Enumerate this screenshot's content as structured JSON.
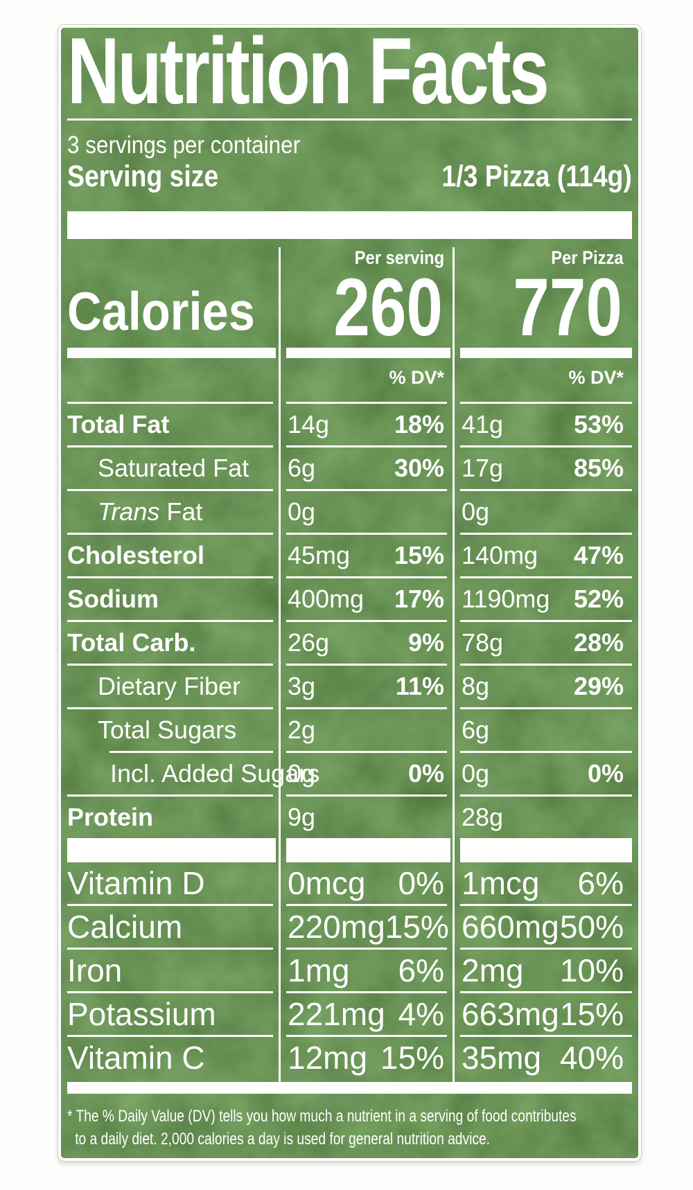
{
  "label": {
    "green_color": "#31511d",
    "text_color": "#ffffff",
    "title": "Nutrition Facts",
    "servings_per_container": "3 servings per container",
    "serving_size": {
      "label": "Serving size",
      "value": "1/3 Pizza (114g)"
    },
    "calories": {
      "label": "Calories",
      "columns": [
        {
          "header": "Per serving",
          "value": "260"
        },
        {
          "header": "Per Pizza",
          "value": "770"
        }
      ]
    },
    "dv_header": "% DV*",
    "nutrients": [
      {
        "name": "Total Fat",
        "style": "bold",
        "indent": 0,
        "per_serving": {
          "amount": "14g",
          "dv": "18%"
        },
        "per_pizza": {
          "amount": "41g",
          "dv": "53%"
        }
      },
      {
        "name": "Saturated Fat",
        "style": "regular",
        "indent": 1,
        "per_serving": {
          "amount": "6g",
          "dv": "30%"
        },
        "per_pizza": {
          "amount": "17g",
          "dv": "85%"
        }
      },
      {
        "name": "Trans Fat",
        "style": "regular",
        "italic_prefix": "Trans",
        "indent": 1,
        "per_serving": {
          "amount": "0g",
          "dv": ""
        },
        "per_pizza": {
          "amount": "0g",
          "dv": ""
        }
      },
      {
        "name": "Cholesterol",
        "style": "bold",
        "indent": 0,
        "per_serving": {
          "amount": "45mg",
          "dv": "15%"
        },
        "per_pizza": {
          "amount": "140mg",
          "dv": "47%"
        }
      },
      {
        "name": "Sodium",
        "style": "bold",
        "indent": 0,
        "per_serving": {
          "amount": "400mg",
          "dv": "17%"
        },
        "per_pizza": {
          "amount": "1190mg",
          "dv": "52%"
        }
      },
      {
        "name": "Total Carb.",
        "style": "bold",
        "indent": 0,
        "per_serving": {
          "amount": "26g",
          "dv": "9%"
        },
        "per_pizza": {
          "amount": "78g",
          "dv": "28%"
        }
      },
      {
        "name": "Dietary Fiber",
        "style": "regular",
        "indent": 1,
        "per_serving": {
          "amount": "3g",
          "dv": "11%"
        },
        "per_pizza": {
          "amount": "8g",
          "dv": "29%"
        }
      },
      {
        "name": "Total Sugars",
        "style": "regular",
        "indent": 1,
        "per_serving": {
          "amount": "2g",
          "dv": ""
        },
        "per_pizza": {
          "amount": "6g",
          "dv": ""
        }
      },
      {
        "name": "Incl. Added Sugars",
        "style": "regular",
        "indent": 2,
        "sep_indent": true,
        "per_serving": {
          "amount": "0g",
          "dv": "0%"
        },
        "per_pizza": {
          "amount": "0g",
          "dv": "0%"
        }
      },
      {
        "name": "Protein",
        "style": "bold",
        "indent": 0,
        "per_serving": {
          "amount": "9g",
          "dv": ""
        },
        "per_pizza": {
          "amount": "28g",
          "dv": ""
        }
      }
    ],
    "micronutrients": [
      {
        "name": "Vitamin D",
        "per_serving": {
          "amount": "0mcg",
          "dv": "0%"
        },
        "per_pizza": {
          "amount": "1mcg",
          "dv": "6%"
        }
      },
      {
        "name": "Calcium",
        "per_serving": {
          "amount": "220mg",
          "dv": "15%"
        },
        "per_pizza": {
          "amount": "660mg",
          "dv": "50%"
        }
      },
      {
        "name": "Iron",
        "per_serving": {
          "amount": "1mg",
          "dv": "6%"
        },
        "per_pizza": {
          "amount": "2mg",
          "dv": "10%"
        }
      },
      {
        "name": "Potassium",
        "per_serving": {
          "amount": "221mg",
          "dv": "4%"
        },
        "per_pizza": {
          "amount": "663mg",
          "dv": "15%"
        }
      },
      {
        "name": "Vitamin C",
        "per_serving": {
          "amount": "12mg",
          "dv": "15%"
        },
        "per_pizza": {
          "amount": "35mg",
          "dv": "40%"
        }
      }
    ],
    "footnote_lines": [
      "* The % Daily Value (DV) tells you how much a nutrient in a serving of food contributes",
      "to a daily diet. 2,000 calories a day is used for general nutrition advice."
    ]
  }
}
